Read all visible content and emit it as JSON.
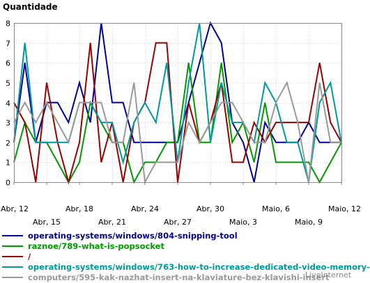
{
  "chart_data": {
    "type": "line",
    "title": "Quantidade",
    "ylim": [
      0,
      8
    ],
    "yticks": [
      0,
      1,
      2,
      3,
      4,
      5,
      6,
      7,
      8
    ],
    "grid": true,
    "x": [
      "Abr, 12",
      "Abr, 13",
      "Abr, 14",
      "Abr, 15",
      "Abr, 16",
      "Abr, 17",
      "Abr, 18",
      "Abr, 19",
      "Abr, 20",
      "Abr, 21",
      "Abr, 22",
      "Abr, 23",
      "Abr, 24",
      "Abr, 25",
      "Abr, 26",
      "Abr, 27",
      "Abr, 28",
      "Abr, 29",
      "Abr, 30",
      "Maio, 1",
      "Maio, 2",
      "Maio, 3",
      "Maio, 4",
      "Maio, 5",
      "Maio, 6",
      "Maio, 7",
      "Maio, 8",
      "Maio, 9",
      "Maio, 10",
      "Maio, 11",
      "Maio, 12"
    ],
    "x_tick_labels_upper": [
      "Abr, 12",
      "Abr, 18",
      "Abr, 24",
      "Abr, 30",
      "Maio, 6",
      "Maio, 12"
    ],
    "x_tick_labels_lower": [
      "Abr, 15",
      "Abr, 21",
      "Abr, 27",
      "Maio, 3",
      "Maio, 9"
    ],
    "series": [
      {
        "name": "operating-systems/windows/804-snipping-tool",
        "color": "#000099",
        "values": [
          2,
          6,
          2,
          4,
          4,
          3,
          5,
          3,
          8,
          4,
          4,
          2,
          2,
          2,
          2,
          2,
          4,
          6,
          8,
          7,
          3,
          2,
          0,
          3,
          2,
          2,
          2,
          3,
          2,
          2,
          2
        ]
      },
      {
        "name": "raznoe/789-what-is-popsocket",
        "color": "#009900",
        "values": [
          1,
          3,
          2,
          2,
          1,
          0,
          1,
          4,
          3,
          2,
          2,
          0,
          1,
          1,
          2,
          2,
          6,
          2,
          2,
          6,
          2,
          3,
          1,
          4,
          1,
          1,
          1,
          1,
          0,
          1,
          2
        ]
      },
      {
        "name": "/",
        "color": "#990000",
        "values": [
          4,
          3,
          0,
          5,
          2,
          0,
          2,
          7,
          1,
          3,
          0,
          3,
          4,
          7,
          7,
          0,
          4,
          2,
          3,
          5,
          1,
          1,
          3,
          2,
          3,
          3,
          3,
          3,
          6,
          3,
          2
        ]
      },
      {
        "name": "operating-systems/windows/763-how-to-increase-dedicated-video-memory-",
        "color": "#009999",
        "values": [
          2,
          7,
          2,
          2,
          2,
          2,
          4,
          4,
          3,
          3,
          1,
          3,
          4,
          3,
          6,
          1,
          5,
          8,
          2,
          5,
          3,
          3,
          2,
          5,
          4,
          2,
          2,
          0,
          4,
          5,
          2
        ]
      },
      {
        "name": "computers/595-kak-nazhat-insert-na-klaviature-bez-klavishi-insert",
        "color": "#999999",
        "values": [
          3,
          4,
          3,
          4,
          3,
          2,
          4,
          4,
          4,
          2,
          2,
          5,
          0,
          1,
          1,
          1,
          3,
          2,
          3,
          4,
          4,
          3,
          2,
          2,
          4,
          5,
          3,
          0,
          5,
          2,
          2
        ]
      }
    ]
  },
  "watermark": "LiveInternet"
}
